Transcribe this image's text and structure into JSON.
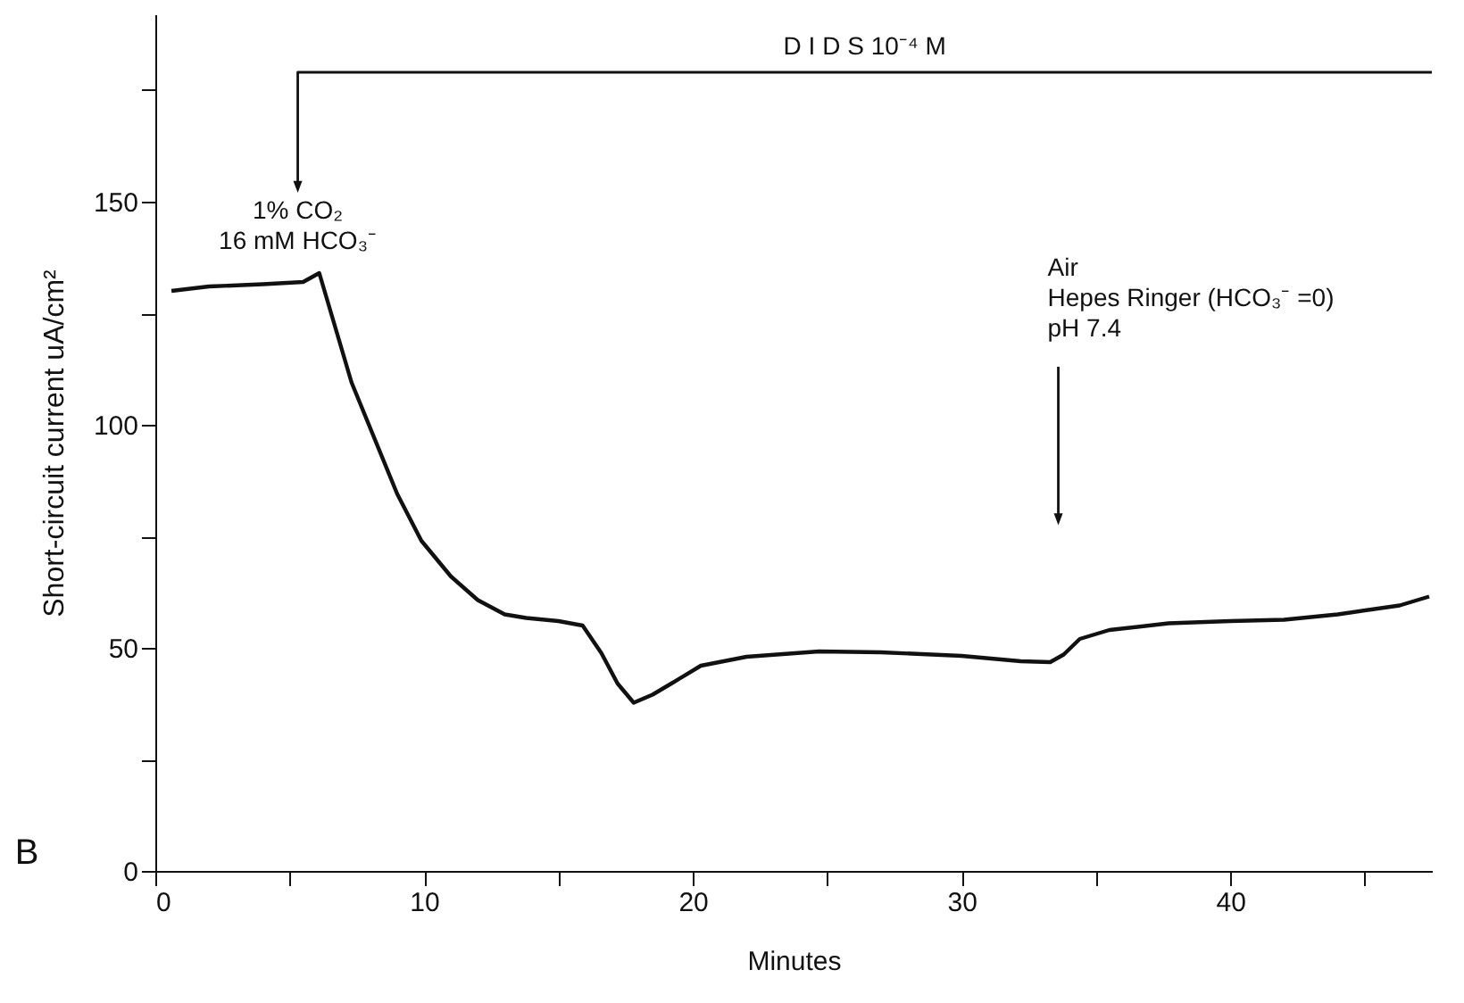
{
  "chart_data": {
    "type": "line",
    "xlabel": "Minutes",
    "ylabel": "Short-circuit current uA/cm²",
    "x": [
      0.6,
      2,
      4,
      5.5,
      6.1,
      7.3,
      9.0,
      9.9,
      11,
      12.0,
      13.0,
      13.8,
      15.0,
      15.9,
      16.6,
      17.2,
      17.8,
      18.5,
      19.2,
      20.3,
      22,
      24.7,
      27,
      30,
      32.2,
      33.3,
      33.8,
      34.4,
      35.5,
      37.7,
      40,
      42,
      44,
      46.3,
      47.4
    ],
    "series": [
      {
        "color": "#111111",
        "values": [
          130,
          131,
          131.5,
          132,
          134,
          109.5,
          84.5,
          74,
          66,
          60.7,
          57.5,
          56.7,
          56,
          55,
          48.8,
          42,
          37.7,
          39.5,
          42,
          46,
          48,
          49.2,
          49,
          48.2,
          47,
          46.8,
          48.5,
          52,
          54,
          55.5,
          56,
          56.3,
          57.5,
          59.5,
          61.5
        ]
      },
      {
        "color": "#111111",
        "x": [
          47.5,
          5.3,
          5.3
        ],
        "values": [
          179,
          179,
          153
        ]
      },
      {
        "color": "#111111",
        "x": [
          33.6,
          33.6
        ],
        "values": [
          113,
          78.5
        ]
      }
    ],
    "xlim": [
      0,
      47.5
    ],
    "ylim": [
      0,
      192
    ],
    "xticks": [
      0,
      {
        "value": 5,
        "label": null
      },
      10,
      {
        "value": 15,
        "label": null
      },
      20,
      {
        "value": 25,
        "label": null
      },
      30,
      {
        "value": 35,
        "label": null
      },
      40,
      {
        "value": 45,
        "label": null
      }
    ],
    "yticks": [
      0,
      {
        "value": 25,
        "label": null
      },
      50,
      {
        "value": 75,
        "label": null
      },
      100,
      {
        "value": 125,
        "label": null
      },
      150,
      {
        "value": 175,
        "label": null
      }
    ],
    "grid": false,
    "line_style": "solid",
    "annotations": [
      {
        "text": "D I D S 10⁻⁴  M",
        "x": 26.4,
        "y": 179
      },
      {
        "text": "1% CO₂\n16 mM HCO₃⁻",
        "x": 5.3,
        "y": 153
      },
      {
        "text": "Air\nHepes Ringer (HCO₃⁻ =0)\npH 7.4",
        "x": 33.6,
        "y": 115
      },
      "B"
    ]
  }
}
